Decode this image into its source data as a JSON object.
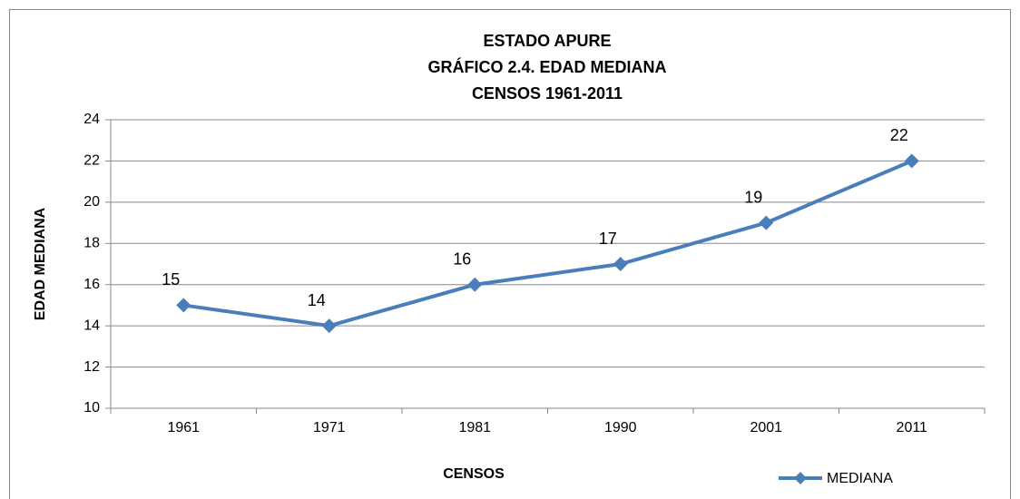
{
  "chart_data": {
    "type": "line",
    "title": [
      "ESTADO APURE",
      "GRÁFICO 2.4. EDAD MEDIANA",
      "CENSOS 1961-2011"
    ],
    "x_label": "CENSOS",
    "y_label": "EDAD MEDIANA",
    "categories": [
      "1961",
      "1971",
      "1981",
      "1990",
      "2001",
      "2011"
    ],
    "series": [
      {
        "name": "MEDIANA",
        "color": "#4a7ebb",
        "values": [
          15,
          14,
          16,
          17,
          19,
          22
        ]
      }
    ],
    "ylim": [
      10,
      24
    ],
    "yticks": [
      10,
      12,
      14,
      16,
      18,
      20,
      22,
      24
    ],
    "grid": true,
    "legend": "bottom-right",
    "data_labels": true
  }
}
